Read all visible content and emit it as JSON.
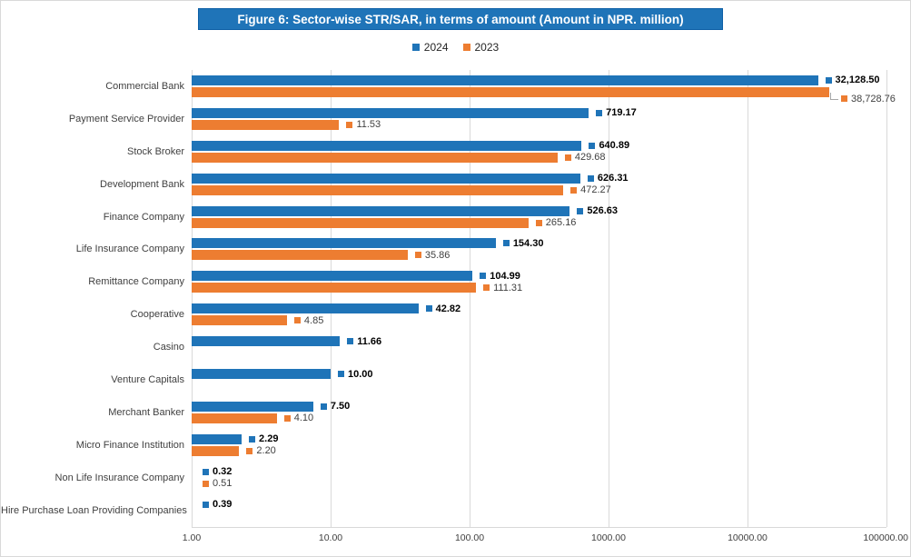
{
  "colors": {
    "series_2024": "#1F74B8",
    "series_2023": "#ED7D31",
    "title_bg": "#1F74B8",
    "title_border": "#0D5FA6",
    "title_text": "#FFFFFF",
    "gridline": "#D9D9D9",
    "leader_line": "#A6A6A6",
    "label_2024_text": "#000000",
    "label_2023_text": "#404040",
    "category_text": "#404040"
  },
  "chart_data": {
    "type": "bar",
    "orientation": "horizontal",
    "x_scale": "log",
    "xlim": [
      1,
      100000
    ],
    "x_ticks": [
      "1.00",
      "10.00",
      "100.00",
      "1000.00",
      "10000.00",
      "100000.00"
    ],
    "grid": "vertical",
    "legend_position": "top",
    "title": "Figure 6: Sector-wise STR/SAR, in terms of amount (Amount in NPR. million)",
    "categories": [
      "Commercial Bank",
      "Payment Service Provider",
      "Stock Broker",
      "Development Bank",
      "Finance Company",
      "Life Insurance Company",
      "Remittance Company",
      "Cooperative",
      "Casino",
      "Venture Capitals",
      "Merchant Banker",
      "Micro Finance Institution",
      "Non Life Insurance Company",
      "Hire Purchase Loan Providing Companies"
    ],
    "series": [
      {
        "name": "2024",
        "color": "#1F74B8",
        "values": [
          32128.5,
          719.17,
          640.89,
          626.31,
          526.63,
          154.3,
          104.99,
          42.82,
          11.66,
          10.0,
          7.5,
          2.29,
          0.32,
          0.39
        ],
        "labels": [
          "32,128.50",
          "719.17",
          "640.89",
          "626.31",
          "526.63",
          "154.30",
          "104.99",
          "42.82",
          "11.66",
          "10.00",
          "7.50",
          "2.29",
          "0.32",
          "0.39"
        ]
      },
      {
        "name": "2023",
        "color": "#ED7D31",
        "values": [
          38728.76,
          11.53,
          429.68,
          472.27,
          265.16,
          35.86,
          111.31,
          4.85,
          null,
          null,
          4.1,
          2.2,
          0.51,
          null
        ],
        "labels": [
          "38,728.76",
          "11.53",
          "429.68",
          "472.27",
          "265.16",
          "35.86",
          "111.31",
          "4.85",
          null,
          null,
          "4.10",
          "2.20",
          "0.51",
          null
        ]
      }
    ],
    "label_leaders": [
      {
        "series_index": 1,
        "category_index": 0
      }
    ]
  }
}
